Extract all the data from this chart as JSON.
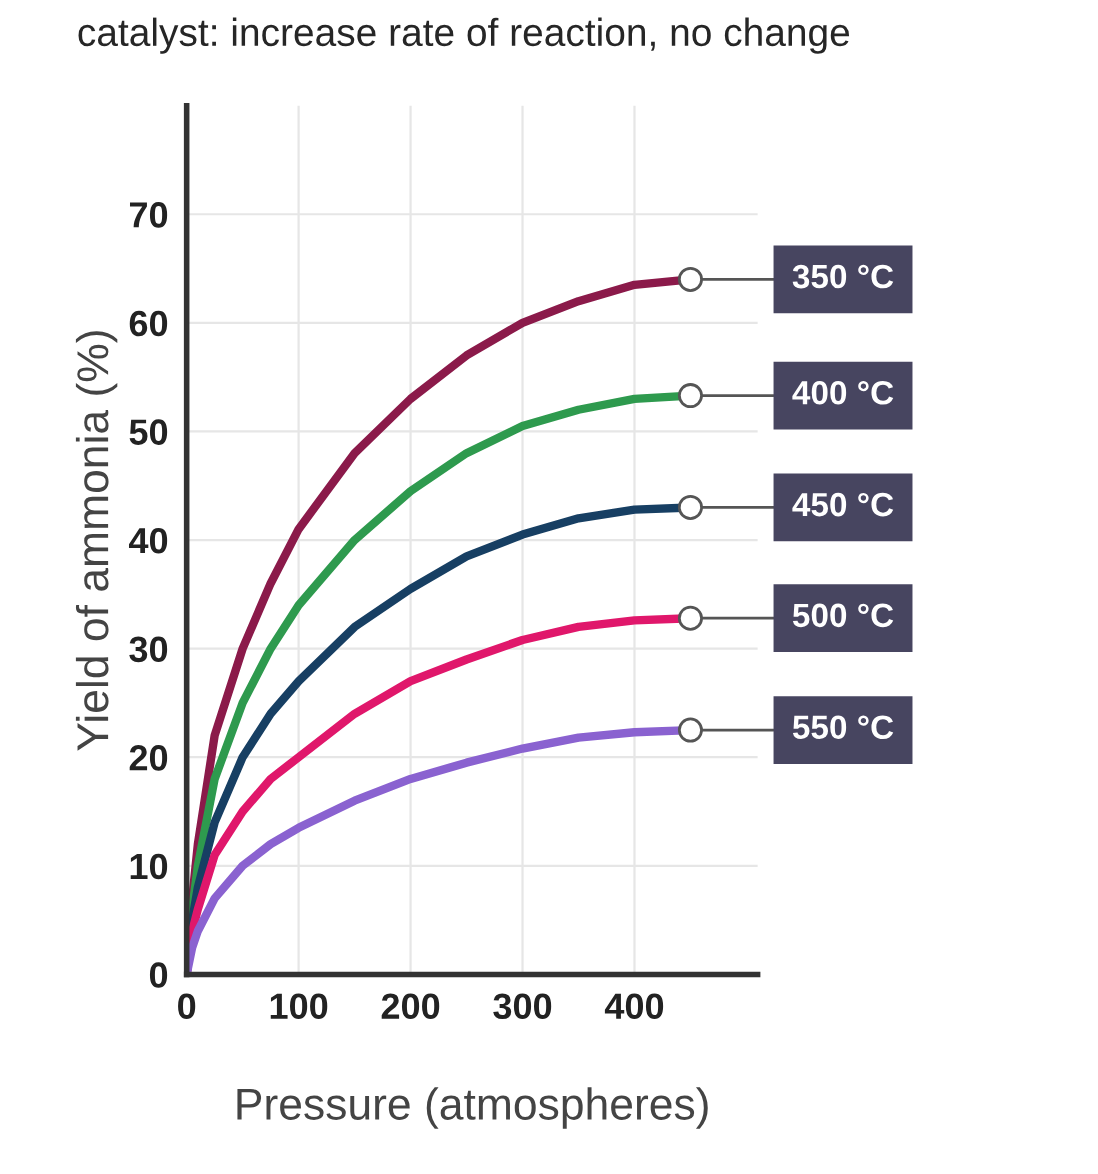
{
  "chart_data": {
    "type": "line",
    "xlabel": "Pressure (atmospheres)",
    "ylabel": "Yield of ammonia (%)",
    "annotations": [
      "catalyst: increase rate of reaction, no change"
    ],
    "x": [
      0,
      5,
      10,
      25,
      50,
      75,
      100,
      150,
      200,
      250,
      300,
      350,
      400,
      450
    ],
    "series": [
      {
        "name": "350 °C",
        "color": "#8b1a4a",
        "values": [
          0,
          7,
          12,
          22,
          30,
          36,
          41,
          48,
          53,
          57,
          60,
          62,
          63.5,
          64
        ]
      },
      {
        "name": "400 °C",
        "color": "#2e9a4e",
        "values": [
          0,
          6,
          10,
          18,
          25,
          30,
          34,
          40,
          44.5,
          48,
          50.5,
          52,
          53,
          53.3
        ]
      },
      {
        "name": "450 °C",
        "color": "#173f63",
        "values": [
          0,
          5,
          8,
          14,
          20,
          24,
          27,
          32,
          35.5,
          38.5,
          40.5,
          42,
          42.8,
          43
        ]
      },
      {
        "name": "500 °C",
        "color": "#e0176b",
        "values": [
          0,
          4,
          6,
          11,
          15,
          18,
          20,
          24,
          27,
          29,
          30.8,
          32,
          32.6,
          32.8
        ]
      },
      {
        "name": "550 °C",
        "color": "#8a62d0",
        "values": [
          0,
          2.5,
          4,
          7,
          10,
          12,
          13.5,
          16,
          18,
          19.5,
          20.8,
          21.8,
          22.3,
          22.5
        ]
      }
    ],
    "xlim": [
      0,
      510
    ],
    "ylim": [
      0,
      80
    ],
    "xticks": [
      0,
      100,
      200,
      300,
      400
    ],
    "yticks": [
      0,
      10,
      20,
      30,
      40,
      50,
      60,
      70
    ],
    "grid": true,
    "legend": "right",
    "line_style": "solid",
    "marker": "none"
  }
}
